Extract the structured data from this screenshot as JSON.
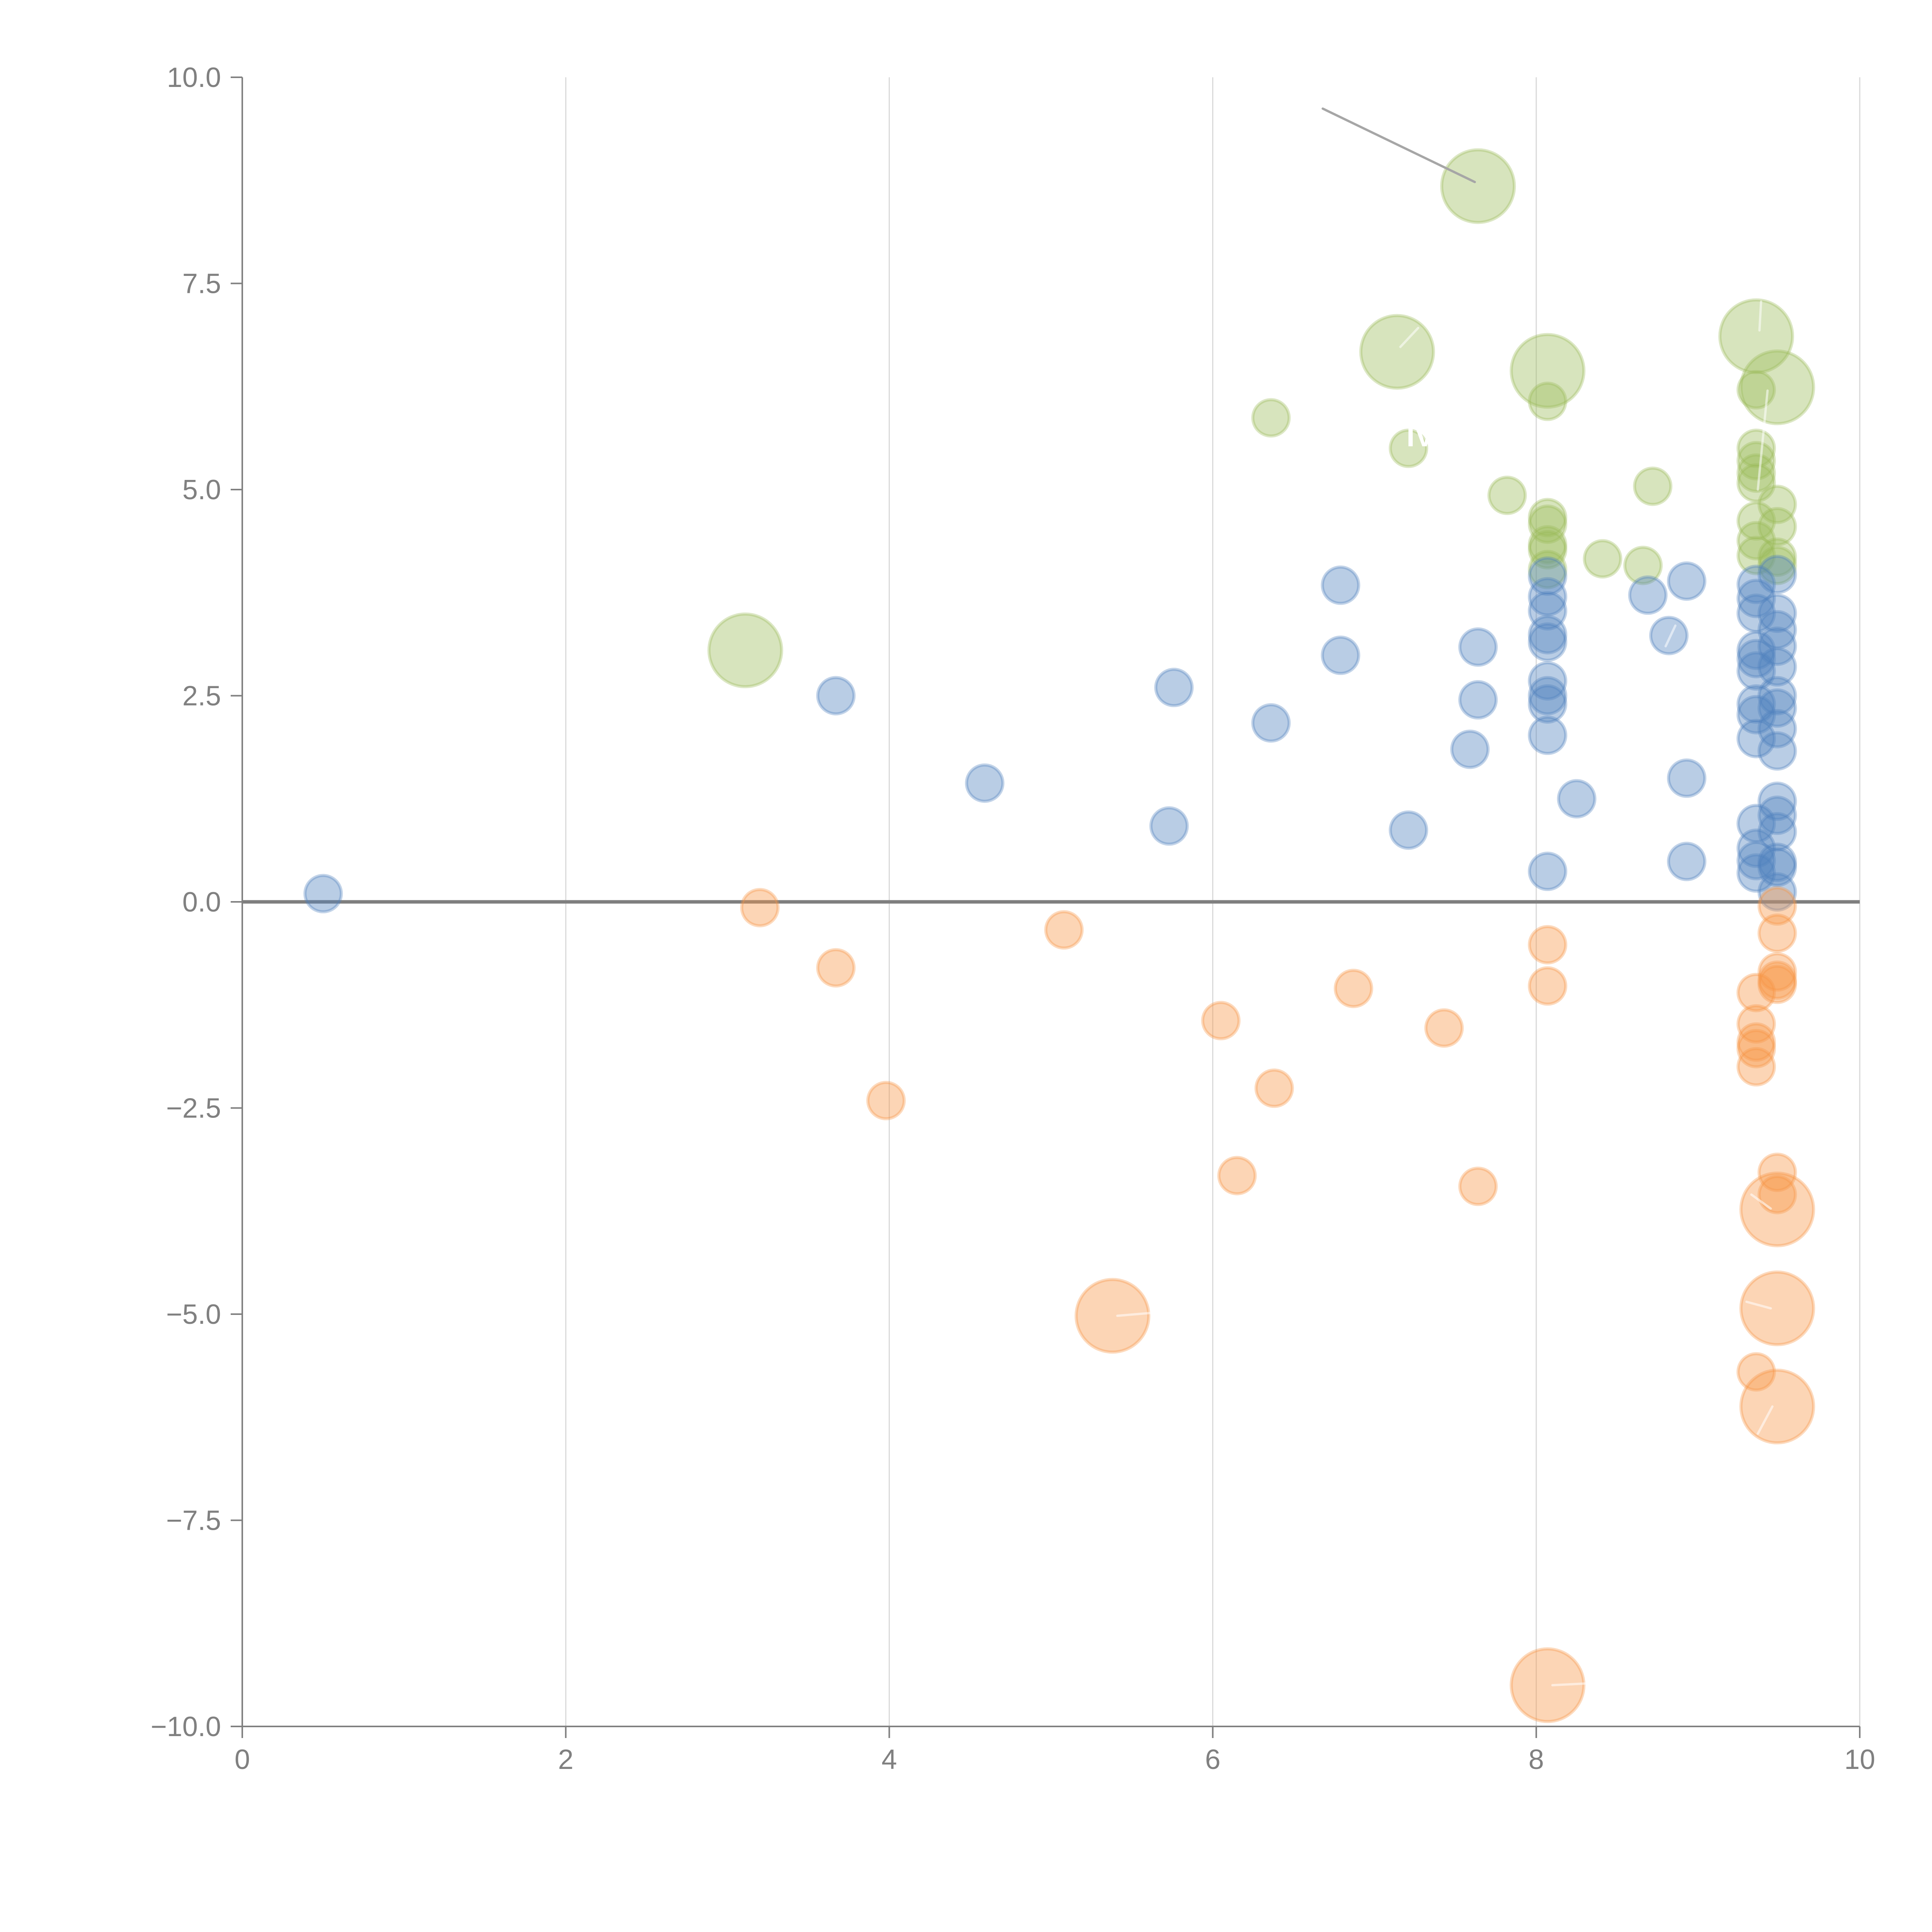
{
  "chart_data": {
    "type": "scatter",
    "subtype": "bubble",
    "title": "",
    "xlabel": "",
    "ylabel": "",
    "xlim": [
      0,
      10
    ],
    "ylim": [
      -10,
      10
    ],
    "x_ticks": [
      "0",
      "2",
      "4",
      "6",
      "8",
      "10"
    ],
    "x_tick_values": [
      0,
      2,
      4,
      6,
      8,
      10
    ],
    "y_ticks": [
      "10.0",
      "7.5",
      "5.0",
      "2.5",
      "0.0",
      "−2.5",
      "−5.0",
      "−7.5",
      "−10.0"
    ],
    "y_tick_values": [
      10,
      7.5,
      5,
      2.5,
      0,
      -2.5,
      -5,
      -7.5,
      -10
    ],
    "grid": "vertical",
    "zero_line": true,
    "legend": "none",
    "series": [
      {
        "name": "green",
        "color": "#9bbb59",
        "points": [
          {
            "x": 7.64,
            "y": 8.68,
            "size": 4
          },
          {
            "x": 7.14,
            "y": 6.67,
            "size": 4
          },
          {
            "x": 8.07,
            "y": 6.44,
            "size": 4
          },
          {
            "x": 9.36,
            "y": 6.86,
            "size": 4
          },
          {
            "x": 9.49,
            "y": 6.24,
            "size": 4
          },
          {
            "x": 3.11,
            "y": 3.05,
            "size": 4
          },
          {
            "x": 8.07,
            "y": 6.07,
            "size": 1
          },
          {
            "x": 6.36,
            "y": 5.87,
            "size": 1
          },
          {
            "x": 7.21,
            "y": 5.5,
            "size": 1
          },
          {
            "x": 7.82,
            "y": 4.93,
            "size": 1
          },
          {
            "x": 8.72,
            "y": 5.04,
            "size": 1
          },
          {
            "x": 8.41,
            "y": 4.16,
            "size": 1
          },
          {
            "x": 8.66,
            "y": 4.08,
            "size": 1
          },
          {
            "x": 9.36,
            "y": 6.21,
            "size": 1
          },
          {
            "x": 9.36,
            "y": 5.5,
            "size": 1
          },
          {
            "x": 9.36,
            "y": 5.35,
            "size": 1
          },
          {
            "x": 9.36,
            "y": 5.2,
            "size": 1
          },
          {
            "x": 9.36,
            "y": 5.08,
            "size": 1
          },
          {
            "x": 9.36,
            "y": 4.62,
            "size": 1
          },
          {
            "x": 9.36,
            "y": 4.38,
            "size": 1
          },
          {
            "x": 9.36,
            "y": 4.2,
            "size": 1
          },
          {
            "x": 9.49,
            "y": 4.82,
            "size": 1
          },
          {
            "x": 9.49,
            "y": 4.55,
            "size": 1
          },
          {
            "x": 9.49,
            "y": 4.18,
            "size": 1
          },
          {
            "x": 9.49,
            "y": 4.08,
            "size": 1
          },
          {
            "x": 8.07,
            "y": 4.66,
            "size": 1
          },
          {
            "x": 8.07,
            "y": 4.58,
            "size": 1
          },
          {
            "x": 8.07,
            "y": 4.33,
            "size": 1
          },
          {
            "x": 8.07,
            "y": 4.27,
            "size": 1
          },
          {
            "x": 8.07,
            "y": 4.03,
            "size": 1
          }
        ]
      },
      {
        "name": "blue",
        "color": "#4f81bd",
        "points": [
          {
            "x": 0.5,
            "y": 0.1,
            "size": 1
          },
          {
            "x": 3.67,
            "y": 2.5,
            "size": 1
          },
          {
            "x": 4.59,
            "y": 1.44,
            "size": 1
          },
          {
            "x": 5.73,
            "y": 0.92,
            "size": 1
          },
          {
            "x": 5.76,
            "y": 2.6,
            "size": 1
          },
          {
            "x": 6.36,
            "y": 2.17,
            "size": 1
          },
          {
            "x": 6.79,
            "y": 3.84,
            "size": 1
          },
          {
            "x": 6.79,
            "y": 2.99,
            "size": 1
          },
          {
            "x": 7.21,
            "y": 0.87,
            "size": 1
          },
          {
            "x": 7.59,
            "y": 1.85,
            "size": 1
          },
          {
            "x": 7.64,
            "y": 3.09,
            "size": 1
          },
          {
            "x": 7.64,
            "y": 2.45,
            "size": 1
          },
          {
            "x": 8.07,
            "y": 3.95,
            "size": 1
          },
          {
            "x": 8.07,
            "y": 3.7,
            "size": 1
          },
          {
            "x": 8.07,
            "y": 3.53,
            "size": 1
          },
          {
            "x": 8.07,
            "y": 3.24,
            "size": 1
          },
          {
            "x": 8.07,
            "y": 3.15,
            "size": 1
          },
          {
            "x": 8.07,
            "y": 2.68,
            "size": 1
          },
          {
            "x": 8.07,
            "y": 2.5,
            "size": 1
          },
          {
            "x": 8.07,
            "y": 2.4,
            "size": 1
          },
          {
            "x": 8.07,
            "y": 2.02,
            "size": 1
          },
          {
            "x": 8.07,
            "y": 0.37,
            "size": 1
          },
          {
            "x": 8.25,
            "y": 1.25,
            "size": 1
          },
          {
            "x": 8.69,
            "y": 3.72,
            "size": 1
          },
          {
            "x": 8.82,
            "y": 3.23,
            "size": 1
          },
          {
            "x": 8.93,
            "y": 3.89,
            "size": 1
          },
          {
            "x": 8.93,
            "y": 1.5,
            "size": 1
          },
          {
            "x": 8.93,
            "y": 0.49,
            "size": 1
          },
          {
            "x": 9.36,
            "y": 3.85,
            "size": 1
          },
          {
            "x": 9.36,
            "y": 3.68,
            "size": 1
          },
          {
            "x": 9.36,
            "y": 3.5,
            "size": 1
          },
          {
            "x": 9.36,
            "y": 3.05,
            "size": 1
          },
          {
            "x": 9.36,
            "y": 2.95,
            "size": 1
          },
          {
            "x": 9.36,
            "y": 2.8,
            "size": 1
          },
          {
            "x": 9.36,
            "y": 2.4,
            "size": 1
          },
          {
            "x": 9.36,
            "y": 2.27,
            "size": 1
          },
          {
            "x": 9.36,
            "y": 1.98,
            "size": 1
          },
          {
            "x": 9.36,
            "y": 0.95,
            "size": 1
          },
          {
            "x": 9.36,
            "y": 0.65,
            "size": 1
          },
          {
            "x": 9.36,
            "y": 0.5,
            "size": 1
          },
          {
            "x": 9.36,
            "y": 0.35,
            "size": 1
          },
          {
            "x": 9.49,
            "y": 3.97,
            "size": 1
          },
          {
            "x": 9.49,
            "y": 3.5,
            "size": 1
          },
          {
            "x": 9.49,
            "y": 3.3,
            "size": 1
          },
          {
            "x": 9.49,
            "y": 3.1,
            "size": 1
          },
          {
            "x": 9.49,
            "y": 2.85,
            "size": 1
          },
          {
            "x": 9.49,
            "y": 2.5,
            "size": 1
          },
          {
            "x": 9.49,
            "y": 2.35,
            "size": 1
          },
          {
            "x": 9.49,
            "y": 2.1,
            "size": 1
          },
          {
            "x": 9.49,
            "y": 1.83,
            "size": 1
          },
          {
            "x": 9.49,
            "y": 1.22,
            "size": 1
          },
          {
            "x": 9.49,
            "y": 1.05,
            "size": 1
          },
          {
            "x": 9.49,
            "y": 0.85,
            "size": 1
          },
          {
            "x": 9.49,
            "y": 0.48,
            "size": 1
          },
          {
            "x": 9.49,
            "y": 0.42,
            "size": 1
          },
          {
            "x": 9.49,
            "y": 0.12,
            "size": 1
          }
        ]
      },
      {
        "name": "orange",
        "color": "#f79646",
        "points": [
          {
            "x": 3.2,
            "y": -0.07,
            "size": 1
          },
          {
            "x": 3.67,
            "y": -0.8,
            "size": 1
          },
          {
            "x": 3.98,
            "y": -2.41,
            "size": 1
          },
          {
            "x": 5.08,
            "y": -0.34,
            "size": 1
          },
          {
            "x": 5.38,
            "y": -5.02,
            "size": 4
          },
          {
            "x": 6.05,
            "y": -1.44,
            "size": 1
          },
          {
            "x": 6.15,
            "y": -3.32,
            "size": 1
          },
          {
            "x": 6.38,
            "y": -2.26,
            "size": 1
          },
          {
            "x": 6.87,
            "y": -1.05,
            "size": 1
          },
          {
            "x": 7.43,
            "y": -1.53,
            "size": 1
          },
          {
            "x": 7.64,
            "y": -3.45,
            "size": 1
          },
          {
            "x": 8.07,
            "y": -0.52,
            "size": 1
          },
          {
            "x": 8.07,
            "y": -1.02,
            "size": 1
          },
          {
            "x": 8.07,
            "y": -9.5,
            "size": 4
          },
          {
            "x": 9.36,
            "y": -1.1,
            "size": 1
          },
          {
            "x": 9.36,
            "y": -1.48,
            "size": 1
          },
          {
            "x": 9.36,
            "y": -1.7,
            "size": 1
          },
          {
            "x": 9.36,
            "y": -1.78,
            "size": 1
          },
          {
            "x": 9.36,
            "y": -2.0,
            "size": 1
          },
          {
            "x": 9.36,
            "y": -5.7,
            "size": 1
          },
          {
            "x": 9.49,
            "y": -0.05,
            "size": 1
          },
          {
            "x": 9.49,
            "y": -0.38,
            "size": 1
          },
          {
            "x": 9.49,
            "y": -0.85,
            "size": 1
          },
          {
            "x": 9.49,
            "y": -0.95,
            "size": 1
          },
          {
            "x": 9.49,
            "y": -1.0,
            "size": 1
          },
          {
            "x": 9.49,
            "y": -3.28,
            "size": 1
          },
          {
            "x": 9.49,
            "y": -3.55,
            "size": 1
          },
          {
            "x": 9.49,
            "y": -3.73,
            "size": 4
          },
          {
            "x": 9.49,
            "y": -4.93,
            "size": 4
          },
          {
            "x": 9.49,
            "y": -6.12,
            "size": 4
          }
        ]
      }
    ],
    "annotations": [
      {
        "type": "leader-line",
        "from": {
          "x": 6.68,
          "y": 9.62
        },
        "to": {
          "x": 7.62,
          "y": 8.73
        },
        "color": "#a6a6a6"
      },
      {
        "type": "leader-line",
        "from": {
          "x": 7.16,
          "y": 6.73
        },
        "to": {
          "x": 7.27,
          "y": 6.96
        },
        "color": "#ffffff"
      },
      {
        "type": "leader-line",
        "from": {
          "x": 9.38,
          "y": 6.93
        },
        "to": {
          "x": 9.39,
          "y": 7.28
        },
        "color": "#ffffff"
      },
      {
        "type": "leader-line",
        "from": {
          "x": 9.43,
          "y": 6.2
        },
        "to": {
          "x": 9.37,
          "y": 5.0
        },
        "color": "#ffffff"
      },
      {
        "type": "leader-line",
        "from": {
          "x": 8.8,
          "y": 3.1
        },
        "to": {
          "x": 8.86,
          "y": 3.35
        },
        "color": "#ffffff"
      },
      {
        "type": "leader-line",
        "from": {
          "x": 5.41,
          "y": -5.02
        },
        "to": {
          "x": 5.65,
          "y": -4.98
        },
        "color": "#ffffff"
      },
      {
        "type": "leader-line",
        "from": {
          "x": 8.1,
          "y": -9.5
        },
        "to": {
          "x": 8.3,
          "y": -9.48
        },
        "color": "#ffffff"
      },
      {
        "type": "leader-line",
        "from": {
          "x": 9.45,
          "y": -3.72
        },
        "to": {
          "x": 9.33,
          "y": -3.55
        },
        "color": "#ffffff"
      },
      {
        "type": "leader-line",
        "from": {
          "x": 9.45,
          "y": -4.93
        },
        "to": {
          "x": 9.3,
          "y": -4.85
        },
        "color": "#ffffff"
      },
      {
        "type": "leader-line",
        "from": {
          "x": 9.46,
          "y": -6.12
        },
        "to": {
          "x": 9.37,
          "y": -6.45
        },
        "color": "#ffffff"
      }
    ],
    "visible_label_fragment": "IV"
  }
}
